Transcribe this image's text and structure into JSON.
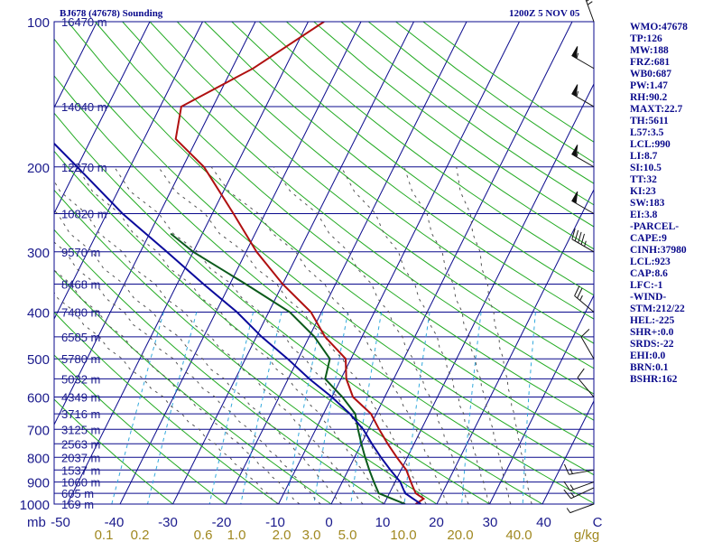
{
  "header": {
    "station_title": "BJ678 (47678) Sounding",
    "time_title": "1200Z  5 NOV 05"
  },
  "stats": [
    "WMO:47678",
    "TP:126",
    "MW:188",
    "FRZ:681",
    "WB0:687",
    "PW:1.47",
    "RH:90.2",
    "MAXT:22.7",
    "TH:5611",
    "L57:3.5",
    "LCL:990",
    "LI:8.7",
    "SI:10.5",
    "TT:32",
    "KI:23",
    "SW:183",
    "EI:3.8",
    "-PARCEL-",
    "CAPE:9",
    "CINH:37980",
    "LCL:923",
    "CAP:8.6",
    "LFC:-1",
    "-WIND-",
    "STM:212/22",
    "HEL:-225",
    "SHR+:0.0",
    "SRDS:-22",
    "EHI:0.0",
    "BRN:0.1",
    "BSHR:162"
  ],
  "chart_data": {
    "type": "line",
    "title": "BJ678 (47678) Sounding",
    "subtitle": "1200Z  5 NOV 05",
    "xlabel": "Temperature (C)",
    "ylabel": "Pressure (mb)",
    "x_axis_label": "mb",
    "ylim": [
      1000,
      100
    ],
    "xlim": [
      -50,
      50
    ],
    "pressure_ticks": [
      100,
      200,
      300,
      400,
      500,
      600,
      700,
      800,
      900,
      1000
    ],
    "temperature_ticks": [
      "-50",
      "-40",
      "-30",
      "-20",
      "-10",
      "0",
      "10",
      "20",
      "30",
      "40",
      "C"
    ],
    "mixing_ratio_labels": [
      "0.1",
      "0.2",
      "0.6",
      "1.0",
      "2.0",
      "3.0",
      "5.0",
      "10.0",
      "20.0",
      "40.0",
      "g/kg"
    ],
    "height_levels": [
      {
        "p": 100,
        "label": "16470 m"
      },
      {
        "p": 150,
        "label": "14040 m"
      },
      {
        "p": 200,
        "label": "12270 m"
      },
      {
        "p": 250,
        "label": "10820 m"
      },
      {
        "p": 300,
        "label": "9570 m"
      },
      {
        "p": 350,
        "label": "8468 m"
      },
      {
        "p": 400,
        "label": "7480 m"
      },
      {
        "p": 450,
        "label": "6585 m"
      },
      {
        "p": 500,
        "label": "5780 m"
      },
      {
        "p": 550,
        "label": "5032 m"
      },
      {
        "p": 600,
        "label": "4349 m"
      },
      {
        "p": 650,
        "label": "3716 m"
      },
      {
        "p": 700,
        "label": "3125 m"
      },
      {
        "p": 750,
        "label": "2563 m"
      },
      {
        "p": 800,
        "label": "2037 m"
      },
      {
        "p": 850,
        "label": "1537 m"
      },
      {
        "p": 900,
        "label": "1060 m"
      },
      {
        "p": 950,
        "label": "605 m"
      },
      {
        "p": 1000,
        "label": "169 m"
      }
    ],
    "series": [
      {
        "name": "Temperature",
        "color": "#b01010",
        "points": [
          [
            1000,
            16
          ],
          [
            975,
            17
          ],
          [
            950,
            15
          ],
          [
            925,
            14
          ],
          [
            900,
            13
          ],
          [
            850,
            11
          ],
          [
            800,
            8
          ],
          [
            750,
            5
          ],
          [
            700,
            2
          ],
          [
            650,
            -1
          ],
          [
            600,
            -6
          ],
          [
            550,
            -9
          ],
          [
            500,
            -11
          ],
          [
            450,
            -17
          ],
          [
            400,
            -22
          ],
          [
            350,
            -30
          ],
          [
            300,
            -38
          ],
          [
            250,
            -46
          ],
          [
            200,
            -56
          ],
          [
            175,
            -64
          ],
          [
            150,
            -66
          ],
          [
            125,
            -56
          ],
          [
            100,
            -47
          ]
        ]
      },
      {
        "name": "Dewpoint",
        "color": "#0a5a1a",
        "points": [
          [
            1000,
            14
          ],
          [
            975,
            11
          ],
          [
            950,
            8
          ],
          [
            925,
            7
          ],
          [
            900,
            6
          ],
          [
            850,
            4
          ],
          [
            800,
            2
          ],
          [
            750,
            0
          ],
          [
            700,
            -2
          ],
          [
            650,
            -4
          ],
          [
            600,
            -8
          ],
          [
            550,
            -13
          ],
          [
            500,
            -14
          ],
          [
            450,
            -19
          ],
          [
            400,
            -26
          ],
          [
            350,
            -37
          ],
          [
            300,
            -50
          ],
          [
            275,
            -56
          ]
        ]
      },
      {
        "name": "Parcel",
        "color": "#0a0a9c",
        "points": [
          [
            1000,
            17
          ],
          [
            975,
            15
          ],
          [
            950,
            13
          ],
          [
            925,
            12
          ],
          [
            900,
            11
          ],
          [
            850,
            8
          ],
          [
            800,
            5
          ],
          [
            750,
            2
          ],
          [
            700,
            -1
          ],
          [
            650,
            -5
          ],
          [
            600,
            -10
          ],
          [
            550,
            -16
          ],
          [
            500,
            -22
          ],
          [
            450,
            -29
          ],
          [
            400,
            -36
          ],
          [
            350,
            -45
          ],
          [
            300,
            -55
          ],
          [
            250,
            -67
          ],
          [
            200,
            -80
          ],
          [
            150,
            -97
          ],
          [
            100,
            -120
          ]
        ]
      }
    ],
    "wind_barbs": [
      {
        "p": 100,
        "dir": 340,
        "speed": 25
      },
      {
        "p": 125,
        "dir": 300,
        "speed": 55
      },
      {
        "p": 150,
        "dir": 300,
        "speed": 55
      },
      {
        "p": 200,
        "dir": 300,
        "speed": 55
      },
      {
        "p": 250,
        "dir": 300,
        "speed": 50
      },
      {
        "p": 300,
        "dir": 300,
        "speed": 45
      },
      {
        "p": 400,
        "dir": 310,
        "speed": 25
      },
      {
        "p": 500,
        "dir": 330,
        "speed": 10
      },
      {
        "p": 600,
        "dir": 320,
        "speed": 10
      },
      {
        "p": 850,
        "dir": 260,
        "speed": 15
      },
      {
        "p": 900,
        "dir": 250,
        "speed": 15
      },
      {
        "p": 925,
        "dir": 245,
        "speed": 15
      },
      {
        "p": 1000,
        "dir": 250,
        "speed": 5
      }
    ]
  }
}
